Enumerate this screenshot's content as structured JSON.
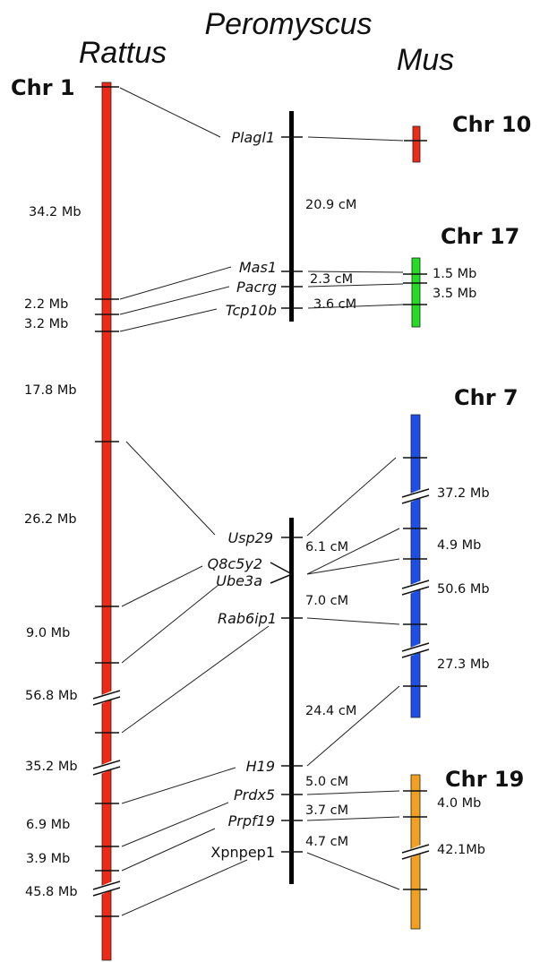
{
  "species": {
    "rattus": "Rattus",
    "peromyscus": "Peromyscus",
    "mus": "Mus"
  },
  "chromosomes": {
    "rat_chr1": "Chr 1",
    "mus_chr10": "Chr 10",
    "mus_chr17": "Chr 17",
    "mus_chr7": "Chr 7",
    "mus_chr19": "Chr 19"
  },
  "colors": {
    "chr1": "#ee2a16",
    "chr10": "#ee2a16",
    "chr17": "#22dd22",
    "chr7": "#1d4fe8",
    "chr19": "#f2a020",
    "peromyscus": "#000000"
  },
  "rat_intervals": [
    "34.2 Mb",
    "2.2 Mb",
    "3.2 Mb",
    "17.8 Mb",
    "26.2 Mb",
    "9.0 Mb",
    "56.8 Mb",
    "35.2 Mb",
    "6.9 Mb",
    "3.9 Mb",
    "45.8 Mb"
  ],
  "peromyscus_upper": {
    "genes": [
      "Plagl1",
      "Mas1",
      "Pacrg",
      "Tcp10b"
    ],
    "intervals": [
      "20.9 cM",
      "2.3 cM",
      "3.6 cM"
    ]
  },
  "peromyscus_lower": {
    "genes": [
      "Usp29",
      "Q8c5y2",
      "Ube3a",
      "Rab6ip1",
      "H19",
      "Prdx5",
      "Prpf19",
      "Xpnpep1"
    ],
    "intervals": [
      "6.1 cM",
      "7.0 cM",
      "24.4 cM",
      "5.0 cM",
      "3.7 cM",
      "4.7 cM"
    ]
  },
  "mus_intervals": {
    "chr17": [
      "1.5 Mb",
      "3.5 Mb"
    ],
    "chr7": [
      "37.2 Mb",
      "4.9 Mb",
      "50.6 Mb",
      "27.3 Mb"
    ],
    "chr19": [
      "4.0 Mb",
      "42.1Mb"
    ]
  }
}
